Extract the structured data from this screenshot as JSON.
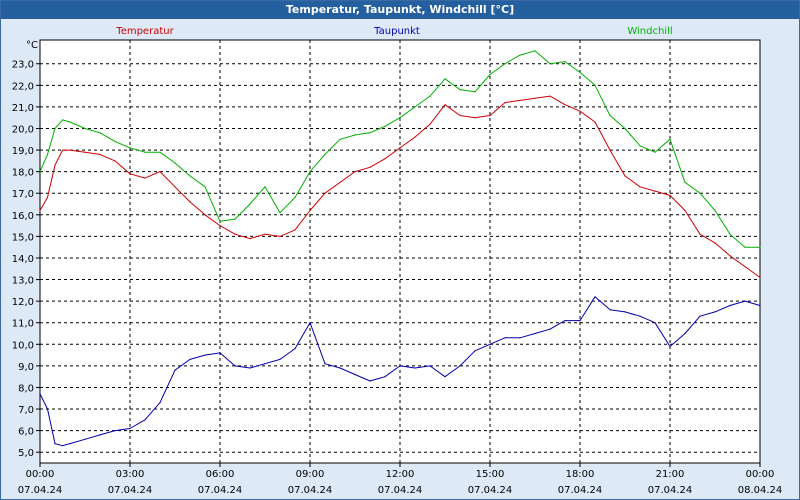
{
  "window": {
    "title": "Temperatur, Taupunkt, Windchill [°C]"
  },
  "chart_data": {
    "type": "line",
    "title": "Temperatur, Taupunkt, Windchill [°C]",
    "ylabel": "°C",
    "ylim": [
      4.5,
      24.1
    ],
    "xlim": [
      0,
      24
    ],
    "yticks": [
      5,
      6,
      7,
      8,
      9,
      10,
      11,
      12,
      13,
      14,
      15,
      16,
      17,
      18,
      19,
      20,
      21,
      22,
      23
    ],
    "ytick_labels": [
      "5,0",
      "6,0",
      "7,0",
      "8,0",
      "9,0",
      "10,0",
      "11,0",
      "12,0",
      "13,0",
      "14,0",
      "15,0",
      "16,0",
      "17,0",
      "18,0",
      "19,0",
      "20,0",
      "21,0",
      "22,0",
      "23,0"
    ],
    "xticks": [
      0,
      3,
      6,
      9,
      12,
      15,
      18,
      21,
      24
    ],
    "xtick_times": [
      "00:00",
      "03:00",
      "06:00",
      "09:00",
      "12:00",
      "15:00",
      "18:00",
      "21:00",
      "00:00"
    ],
    "xtick_dates": [
      "07.04.24",
      "07.04.24",
      "07.04.24",
      "07.04.24",
      "07.04.24",
      "07.04.24",
      "07.04.24",
      "07.04.24",
      "08.04.24"
    ],
    "grid": true,
    "series": [
      {
        "name": "Temperatur",
        "color": "#d00000",
        "x": [
          0,
          0.25,
          0.5,
          0.75,
          1,
          1.5,
          2,
          2.5,
          3,
          3.5,
          4,
          4.5,
          5,
          5.5,
          6,
          6.5,
          7,
          7.5,
          8,
          8.5,
          9,
          9.5,
          10,
          10.5,
          11,
          11.5,
          12,
          12.5,
          13,
          13.5,
          14,
          14.5,
          15,
          15.5,
          16,
          16.5,
          17,
          17.5,
          18,
          18.5,
          19,
          19.5,
          20,
          20.5,
          21,
          21.5,
          22,
          22.5,
          23,
          23.5,
          24
        ],
        "y": [
          16.2,
          16.8,
          18.3,
          19.0,
          19.0,
          18.9,
          18.8,
          18.5,
          17.9,
          17.7,
          18.0,
          17.3,
          16.6,
          16.0,
          15.5,
          15.1,
          14.9,
          15.1,
          15.0,
          15.3,
          16.2,
          17.0,
          17.5,
          18.0,
          18.2,
          18.6,
          19.1,
          19.6,
          20.2,
          21.1,
          20.6,
          20.5,
          20.6,
          21.2,
          21.3,
          21.4,
          21.5,
          21.1,
          20.8,
          20.3,
          19.0,
          17.8,
          17.3,
          17.1,
          16.9,
          16.2,
          15.1,
          14.7,
          14.1,
          13.6,
          13.1
        ]
      },
      {
        "name": "Taupunkt",
        "color": "#0000b0",
        "x": [
          0,
          0.25,
          0.5,
          0.75,
          1,
          1.5,
          2,
          2.5,
          3,
          3.5,
          4,
          4.5,
          5,
          5.5,
          6,
          6.5,
          7,
          7.5,
          8,
          8.5,
          9,
          9.5,
          10,
          10.5,
          11,
          11.5,
          12,
          12.5,
          13,
          13.5,
          14,
          14.5,
          15,
          15.5,
          16,
          16.5,
          17,
          17.5,
          18,
          18.5,
          19,
          19.5,
          20,
          20.5,
          21,
          21.5,
          22,
          22.5,
          23,
          23.5,
          24
        ],
        "y": [
          7.7,
          7.0,
          5.4,
          5.3,
          5.4,
          5.6,
          5.8,
          6.0,
          6.1,
          6.5,
          7.3,
          8.8,
          9.3,
          9.5,
          9.6,
          9.0,
          8.9,
          9.1,
          9.3,
          9.8,
          11.0,
          9.1,
          8.9,
          8.6,
          8.3,
          8.5,
          9.0,
          8.9,
          9.0,
          8.5,
          9.0,
          9.7,
          10.0,
          10.3,
          10.3,
          10.5,
          10.7,
          11.1,
          11.1,
          12.2,
          11.6,
          11.5,
          11.3,
          11.0,
          9.9,
          10.5,
          11.3,
          11.5,
          11.8,
          12.0,
          11.8
        ]
      },
      {
        "name": "Windchill",
        "color": "#00b000",
        "x": [
          0,
          0.25,
          0.5,
          0.75,
          1,
          1.5,
          2,
          2.5,
          3,
          3.5,
          4,
          4.5,
          5,
          5.5,
          6,
          6.5,
          7,
          7.5,
          8,
          8.5,
          9,
          9.5,
          10,
          10.5,
          11,
          11.5,
          12,
          12.5,
          13,
          13.5,
          14,
          14.5,
          15,
          15.5,
          16,
          16.5,
          17,
          17.5,
          18,
          18.5,
          19,
          19.5,
          20,
          20.5,
          21,
          21.5,
          22,
          22.5,
          23,
          23.5,
          24
        ],
        "y": [
          18.0,
          18.8,
          20.0,
          20.4,
          20.3,
          20.0,
          19.8,
          19.4,
          19.1,
          18.9,
          18.9,
          18.4,
          17.8,
          17.3,
          15.7,
          15.8,
          16.5,
          17.3,
          16.1,
          16.8,
          18.0,
          18.8,
          19.5,
          19.7,
          19.8,
          20.1,
          20.5,
          21.0,
          21.5,
          22.3,
          21.8,
          21.7,
          22.5,
          23.0,
          23.4,
          23.6,
          23.0,
          23.1,
          22.6,
          22.0,
          20.6,
          20.0,
          19.2,
          18.9,
          19.5,
          17.5,
          17.0,
          16.2,
          15.1,
          14.5,
          14.5
        ]
      }
    ]
  }
}
